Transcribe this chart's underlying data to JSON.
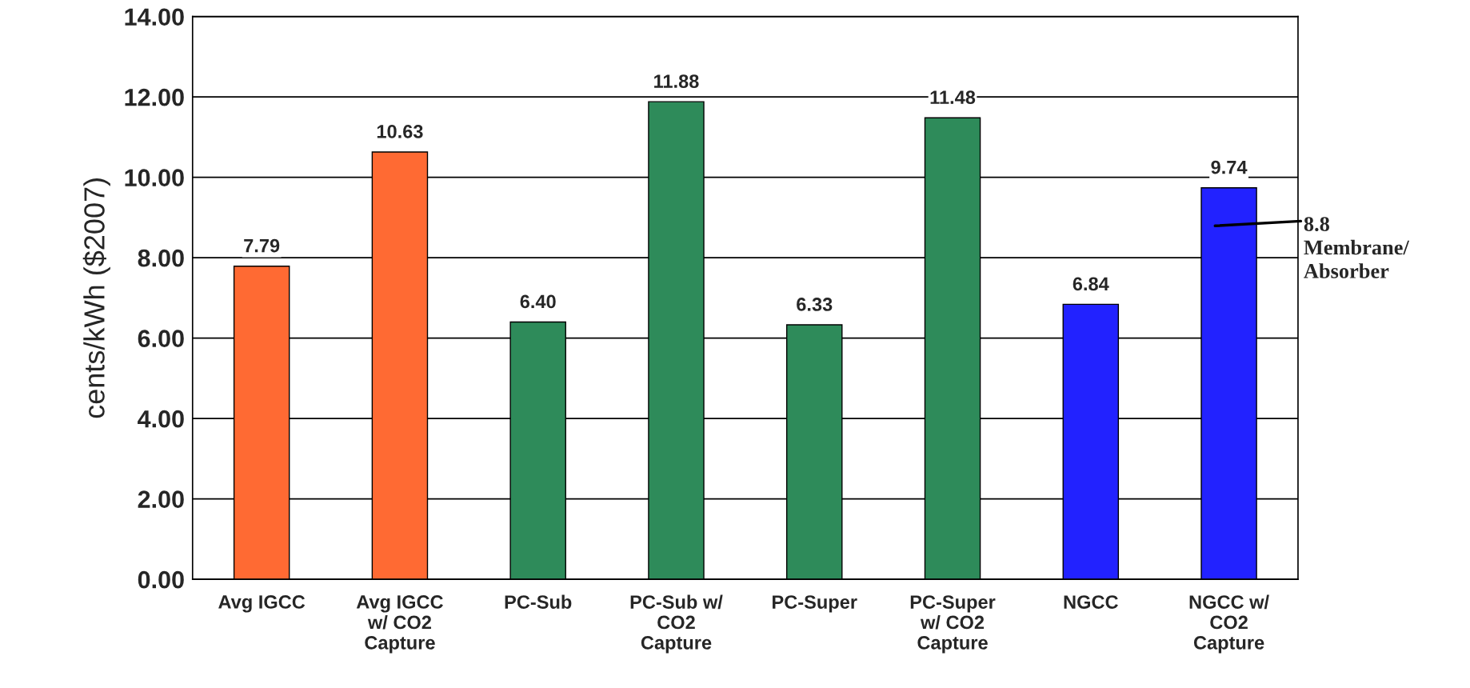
{
  "chart_data": {
    "type": "bar",
    "ylabel": "cents/kWh ($2007)",
    "categories": [
      "Avg IGCC",
      "Avg IGCC\nw/ CO2\nCapture",
      "PC-Sub",
      "PC-Sub w/\nCO2\nCapture",
      "PC-Super",
      "PC-Super\nw/ CO2\nCapture",
      "NGCC",
      "NGCC w/\nCO2\nCapture"
    ],
    "values": [
      7.79,
      10.63,
      6.4,
      11.88,
      6.33,
      11.48,
      6.84,
      9.74
    ],
    "value_labels": [
      "7.79",
      "10.63",
      "6.40",
      "11.88",
      "6.33",
      "11.48",
      "6.84",
      "9.74"
    ],
    "colors": [
      "#ff6a33",
      "#ff6a33",
      "#2e8b5a",
      "#2e8b5a",
      "#2e8b5a",
      "#2e8b5a",
      "#2222ff",
      "#2222ff"
    ],
    "ylim": [
      0,
      14
    ],
    "yticks": [
      {
        "value": 0,
        "label": "0.00"
      },
      {
        "value": 2,
        "label": "2.00"
      },
      {
        "value": 4,
        "label": "4.00"
      },
      {
        "value": 6,
        "label": "6.00"
      },
      {
        "value": 8,
        "label": "8.00"
      },
      {
        "value": 10,
        "label": "10.00"
      },
      {
        "value": 12,
        "label": "12.00"
      },
      {
        "value": 14,
        "label": "14.00"
      }
    ],
    "grid": "y",
    "annotations": [
      "8.8\nMembrane/\nAbsorber"
    ]
  }
}
